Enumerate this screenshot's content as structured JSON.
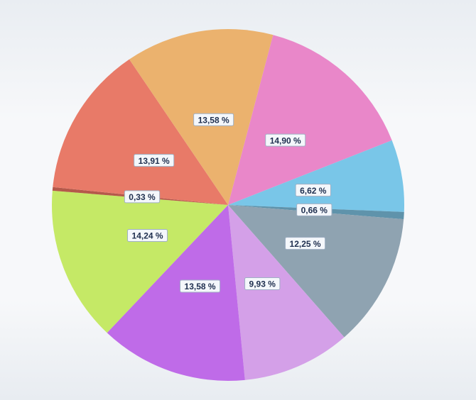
{
  "chart_data": {
    "type": "pie",
    "categories": [
      null,
      null,
      null,
      null,
      null,
      null,
      null,
      null,
      null,
      null
    ],
    "values": [
      14.9,
      6.62,
      0.66,
      12.25,
      9.93,
      13.58,
      14.24,
      0.33,
      13.91,
      13.58
    ],
    "value_labels": [
      "14,90 %",
      "6,62 %",
      "0,66 %",
      "12,25 %",
      "9,93 %",
      "13,58 %",
      "14,24 %",
      "0,33 %",
      "13,91 %",
      "13,58 %"
    ],
    "colors": [
      "#e987c9",
      "#79c6e8",
      "#5f93ab",
      "#8fa3b1",
      "#d4a0e8",
      "#bf6be8",
      "#c5e966",
      "#b5594a",
      "#e87a68",
      "#ebb26e"
    ]
  }
}
